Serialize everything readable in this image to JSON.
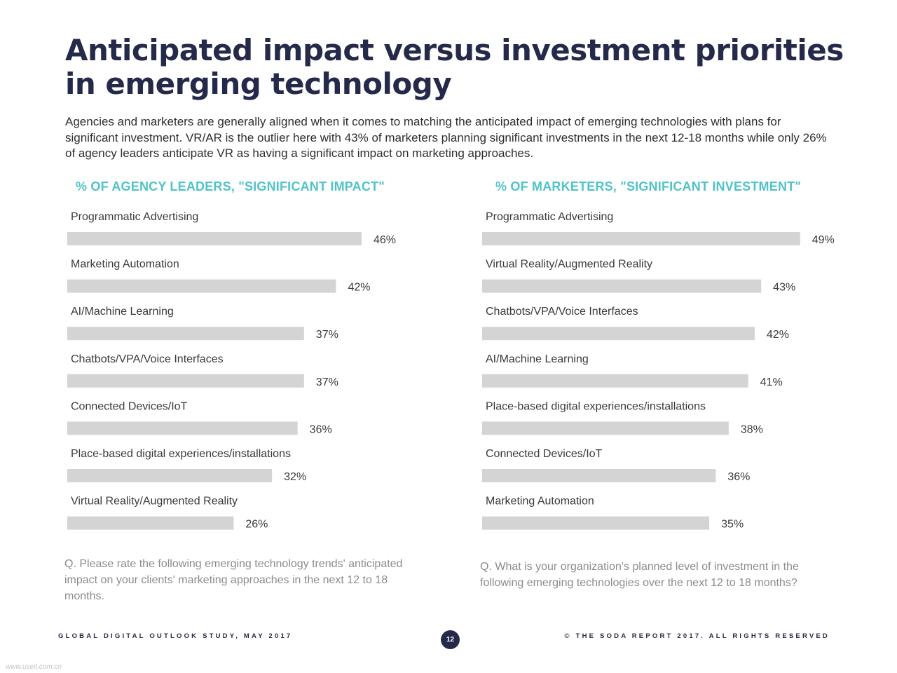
{
  "title": "Anticipated impact versus investment priorities in emerging technology",
  "intro": "Agencies and marketers are generally aligned when it comes to matching the anticipated impact of emerging technologies with plans for significant investment. VR/AR is the outlier here with 43% of marketers planning significant investments in the next 12-18 months while only 26% of agency leaders anticipate VR as having a significant impact on marketing approaches.",
  "chart_data": [
    {
      "type": "bar",
      "orientation": "horizontal",
      "title": "% OF AGENCY LEADERS, \"SIGNIFICANT IMPACT\"",
      "categories": [
        "Programmatic Advertising",
        "Marketing Automation",
        "AI/Machine Learning",
        "Chatbots/VPA/Voice Interfaces",
        "Connected Devices/IoT",
        "Place-based digital experiences/installations",
        "Virtual Reality/Augmented Reality"
      ],
      "values": [
        46,
        42,
        37,
        37,
        36,
        32,
        26
      ],
      "value_labels": [
        "46%",
        "42%",
        "37%",
        "37%",
        "36%",
        "32%",
        "26%"
      ],
      "xlim": [
        0,
        100
      ],
      "grid": false,
      "bar_color": "#d4d4d4",
      "question": "Q. Please rate the following emerging technology trends' anticipated impact on your clients' marketing approaches in the next 12 to 18 months."
    },
    {
      "type": "bar",
      "orientation": "horizontal",
      "title": "% OF MARKETERS, \"SIGNIFICANT INVESTMENT\"",
      "categories": [
        "Programmatic Advertising",
        "Virtual Reality/Augmented Reality",
        "Chatbots/VPA/Voice Interfaces",
        "AI/Machine Learning",
        "Place-based digital experiences/installations",
        "Connected Devices/IoT",
        "Marketing Automation"
      ],
      "values": [
        49,
        43,
        42,
        41,
        38,
        36,
        35
      ],
      "value_labels": [
        "49%",
        "43%",
        "42%",
        "41%",
        "38%",
        "36%",
        "35%"
      ],
      "xlim": [
        0,
        100
      ],
      "grid": false,
      "bar_color": "#d4d4d4",
      "question": "Q. What is your organization's planned level of investment in the following emerging technologies over the next 12 to 18 months?"
    }
  ],
  "footer": {
    "left": "GLOBAL DIGITAL OUTLOOK STUDY, MAY 2017",
    "page": "12",
    "right": "© THE SODA REPORT 2017. ALL RIGHTS RESERVED"
  },
  "watermark": "www.useit.com.cn",
  "colors": {
    "title": "#262a4a",
    "accent": "#4fc3c8",
    "bar": "#d4d4d4",
    "question": "#8c8c8c"
  }
}
